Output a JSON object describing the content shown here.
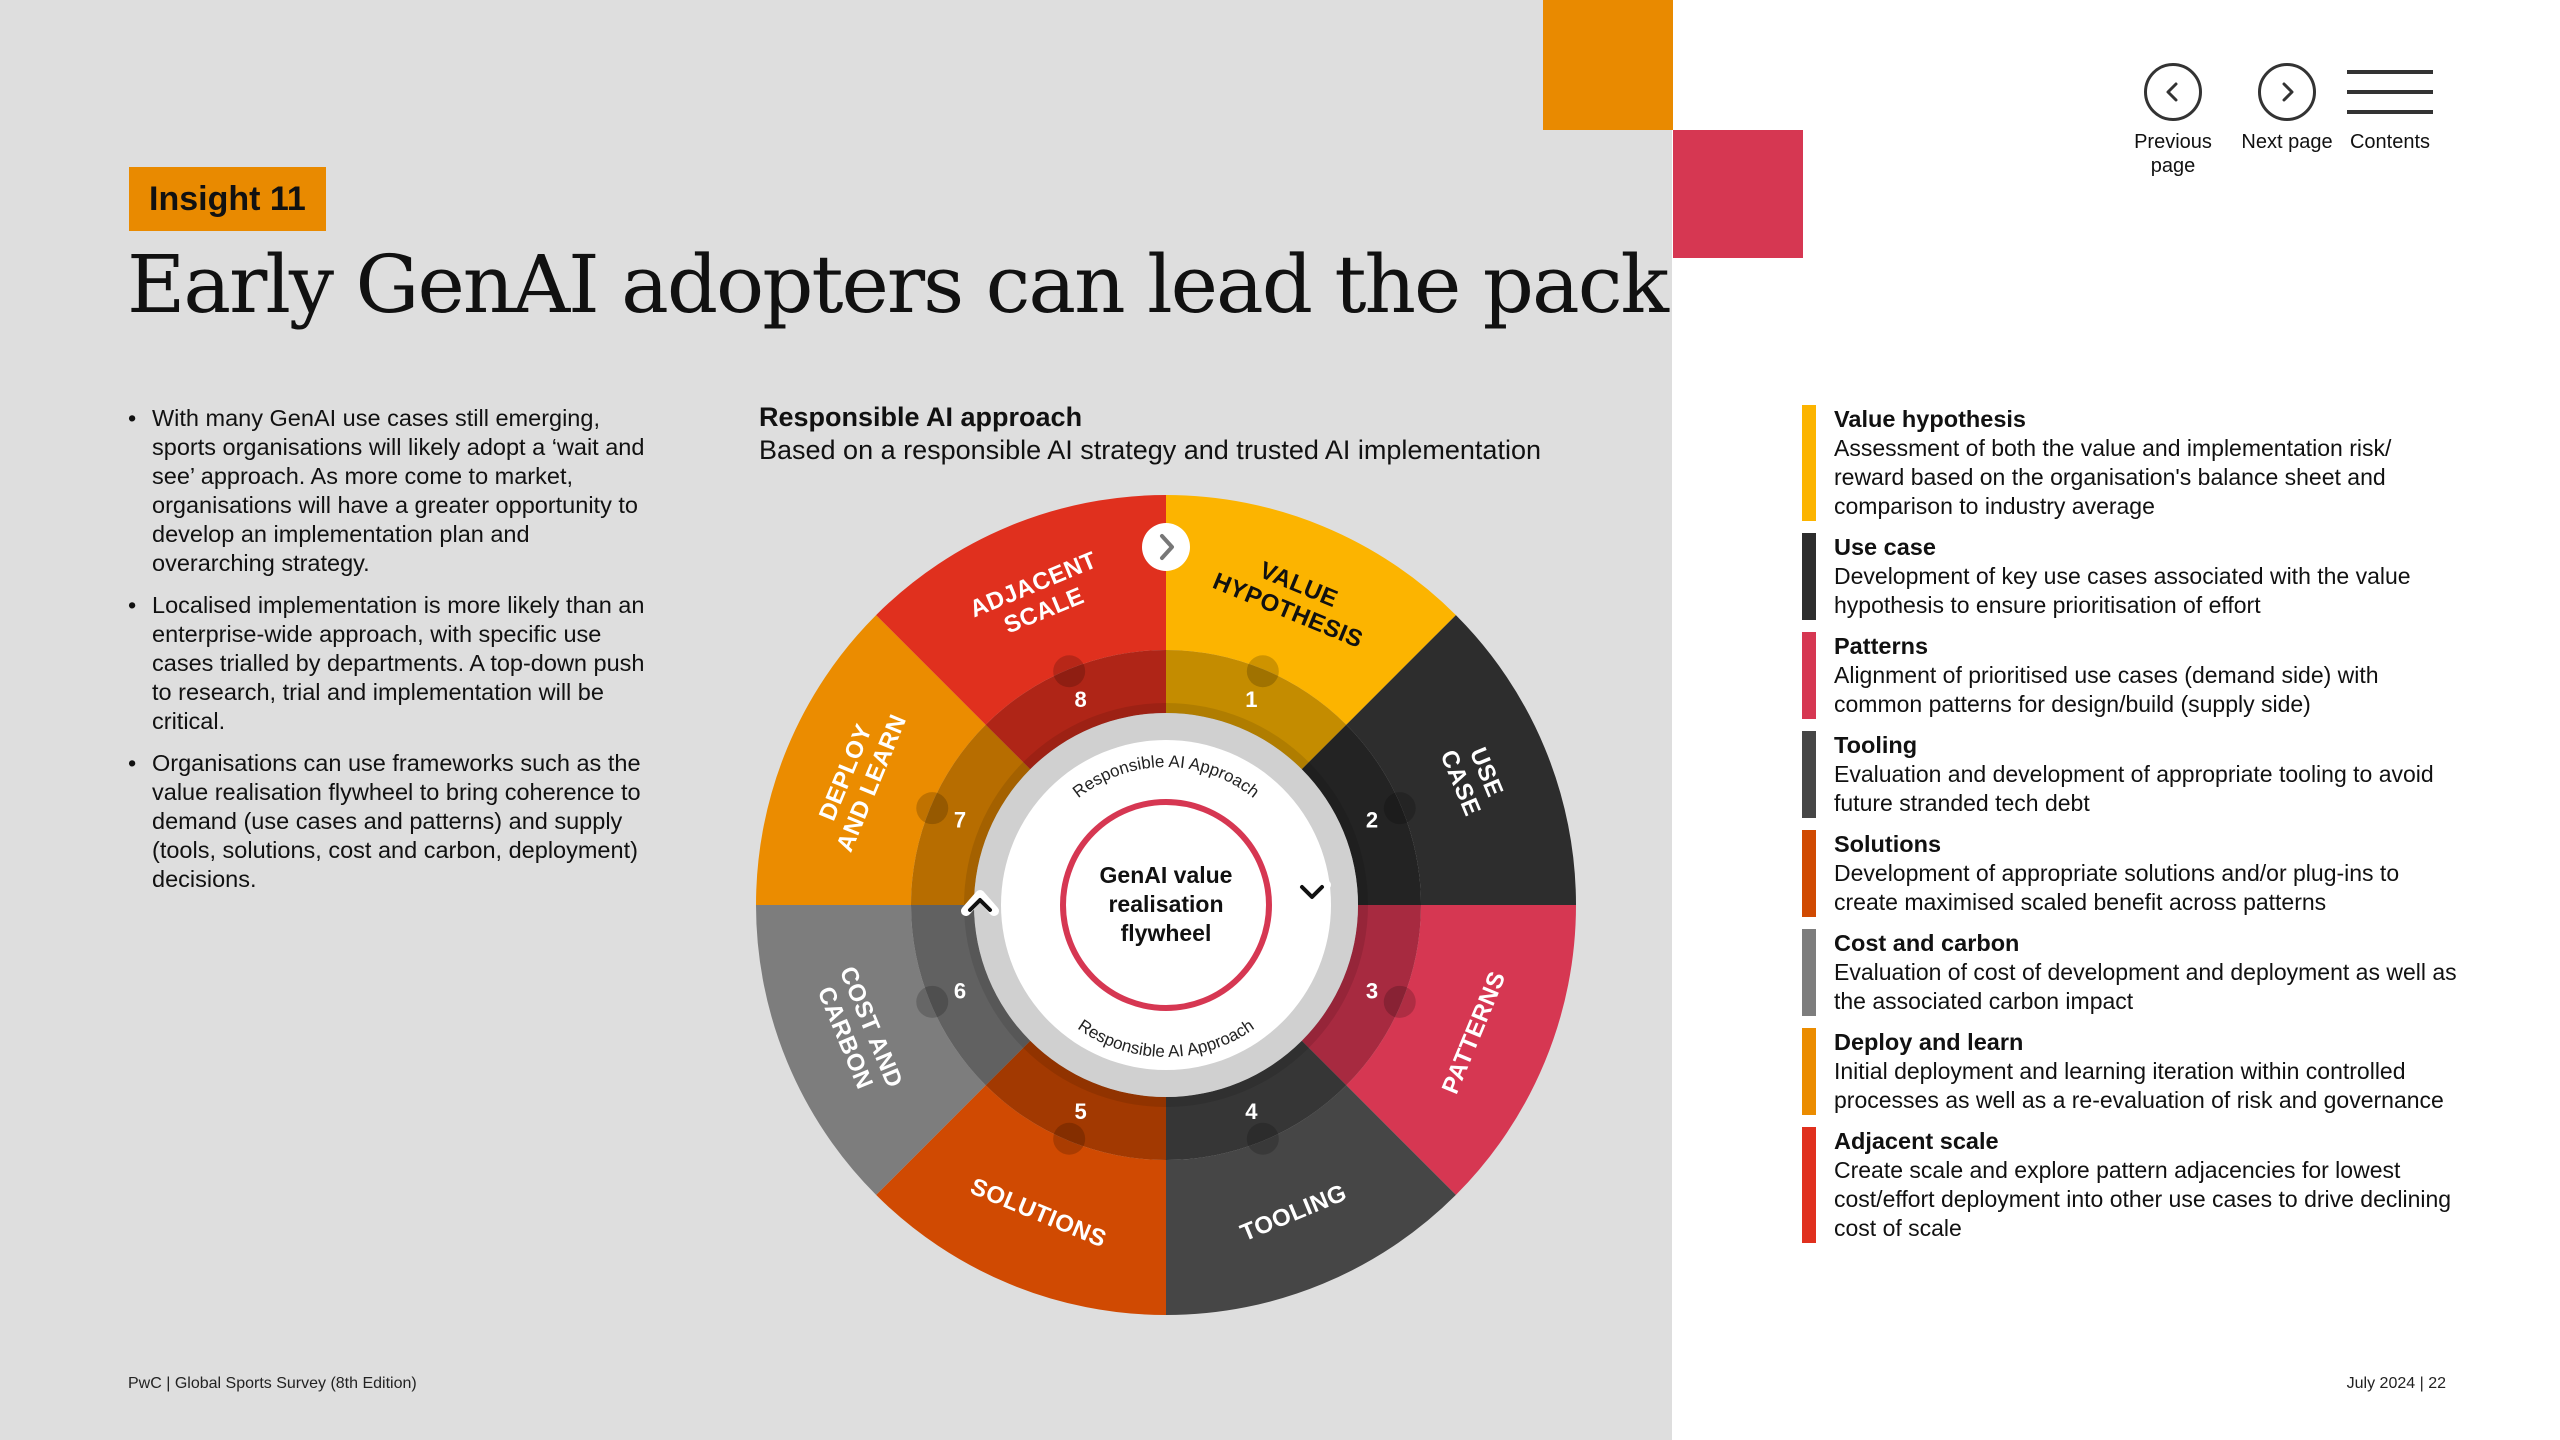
{
  "insight_badge": "Insight 11",
  "title": "Early GenAI adopters can lead the pack",
  "bullets": [
    "With many GenAI use cases still emerging, sports organisations will likely adopt a ‘wait and see’ approach. As more come to market, organisations will have a greater opportunity to develop an implementation plan and overarching strategy.",
    "Localised implementation is more likely than an enterprise-wide approach, with specific use cases trialled by departments. A top-down push to research, trial and implementation will be critical.",
    "Organisations can use frameworks such as the value realisation flywheel to bring coherence to demand (use cases and patterns) and supply (tools, solutions, cost and carbon, deployment) decisions."
  ],
  "chart": {
    "heading": "Responsible AI approach",
    "subheading": "Based on a responsible AI strategy and trusted AI implementation",
    "arc_label": "Responsible AI Approach",
    "hub_lines": [
      "GenAI value",
      "realisation",
      "flywheel"
    ],
    "segments": [
      {
        "num": "1",
        "lines": [
          "VALUE",
          "HYPOTHESIS"
        ],
        "color": "#fcb400",
        "text_color": "#111111"
      },
      {
        "num": "2",
        "lines": [
          "USE",
          "CASE"
        ],
        "color": "#2d2d2d",
        "text_color": "#ffffff"
      },
      {
        "num": "3",
        "lines": [
          "PATTERNS"
        ],
        "color": "#d63752",
        "text_color": "#ffffff"
      },
      {
        "num": "4",
        "lines": [
          "TOOLING"
        ],
        "color": "#464646",
        "text_color": "#ffffff"
      },
      {
        "num": "5",
        "lines": [
          "SOLUTIONS"
        ],
        "color": "#d04a02",
        "text_color": "#ffffff"
      },
      {
        "num": "6",
        "lines": [
          "COST AND",
          "CARBON"
        ],
        "color": "#7d7d7d",
        "text_color": "#ffffff"
      },
      {
        "num": "7",
        "lines": [
          "DEPLOY",
          "AND LEARN"
        ],
        "color": "#eb8c00",
        "text_color": "#ffffff"
      },
      {
        "num": "8",
        "lines": [
          "ADJACENT",
          "SCALE"
        ],
        "color": "#e0301e",
        "text_color": "#ffffff"
      }
    ]
  },
  "nav": {
    "previous_label": "Previous page",
    "next_label": "Next page",
    "contents_label": "Contents"
  },
  "legend": [
    {
      "title": "Value hypothesis",
      "desc": "Assessment of both the value and implementation risk/ reward based on the organisation's balance sheet and comparison to industry average",
      "color": "#fcb400"
    },
    {
      "title": "Use case",
      "desc": "Development of key use cases associated with the value hypothesis to ensure prioritisation of effort",
      "color": "#2d2d2d"
    },
    {
      "title": "Patterns",
      "desc": "Alignment of prioritised use cases (demand side) with common patterns for design/build (supply side)",
      "color": "#d63752"
    },
    {
      "title": "Tooling",
      "desc": "Evaluation and development of appropriate tooling to avoid future stranded tech debt",
      "color": "#464646"
    },
    {
      "title": "Solutions",
      "desc": "Development of appropriate solutions and/or plug-ins to create maximised scaled benefit across patterns",
      "color": "#d04a02"
    },
    {
      "title": "Cost and carbon",
      "desc": "Evaluation of cost of development and deployment as well as the associated carbon impact",
      "color": "#7d7d7d"
    },
    {
      "title": "Deploy and learn",
      "desc": "Initial deployment and learning iteration within controlled processes as well as a re-evaluation of risk and governance",
      "color": "#eb8c00"
    },
    {
      "title": "Adjacent scale",
      "desc": "Create scale and explore pattern adjacencies for lowest cost/effort deployment into other use cases to drive declining cost of scale",
      "color": "#e0301e"
    }
  ],
  "footer": {
    "left": "PwC | Global Sports Survey (8th Edition)",
    "right": "July 2024 | 22"
  }
}
